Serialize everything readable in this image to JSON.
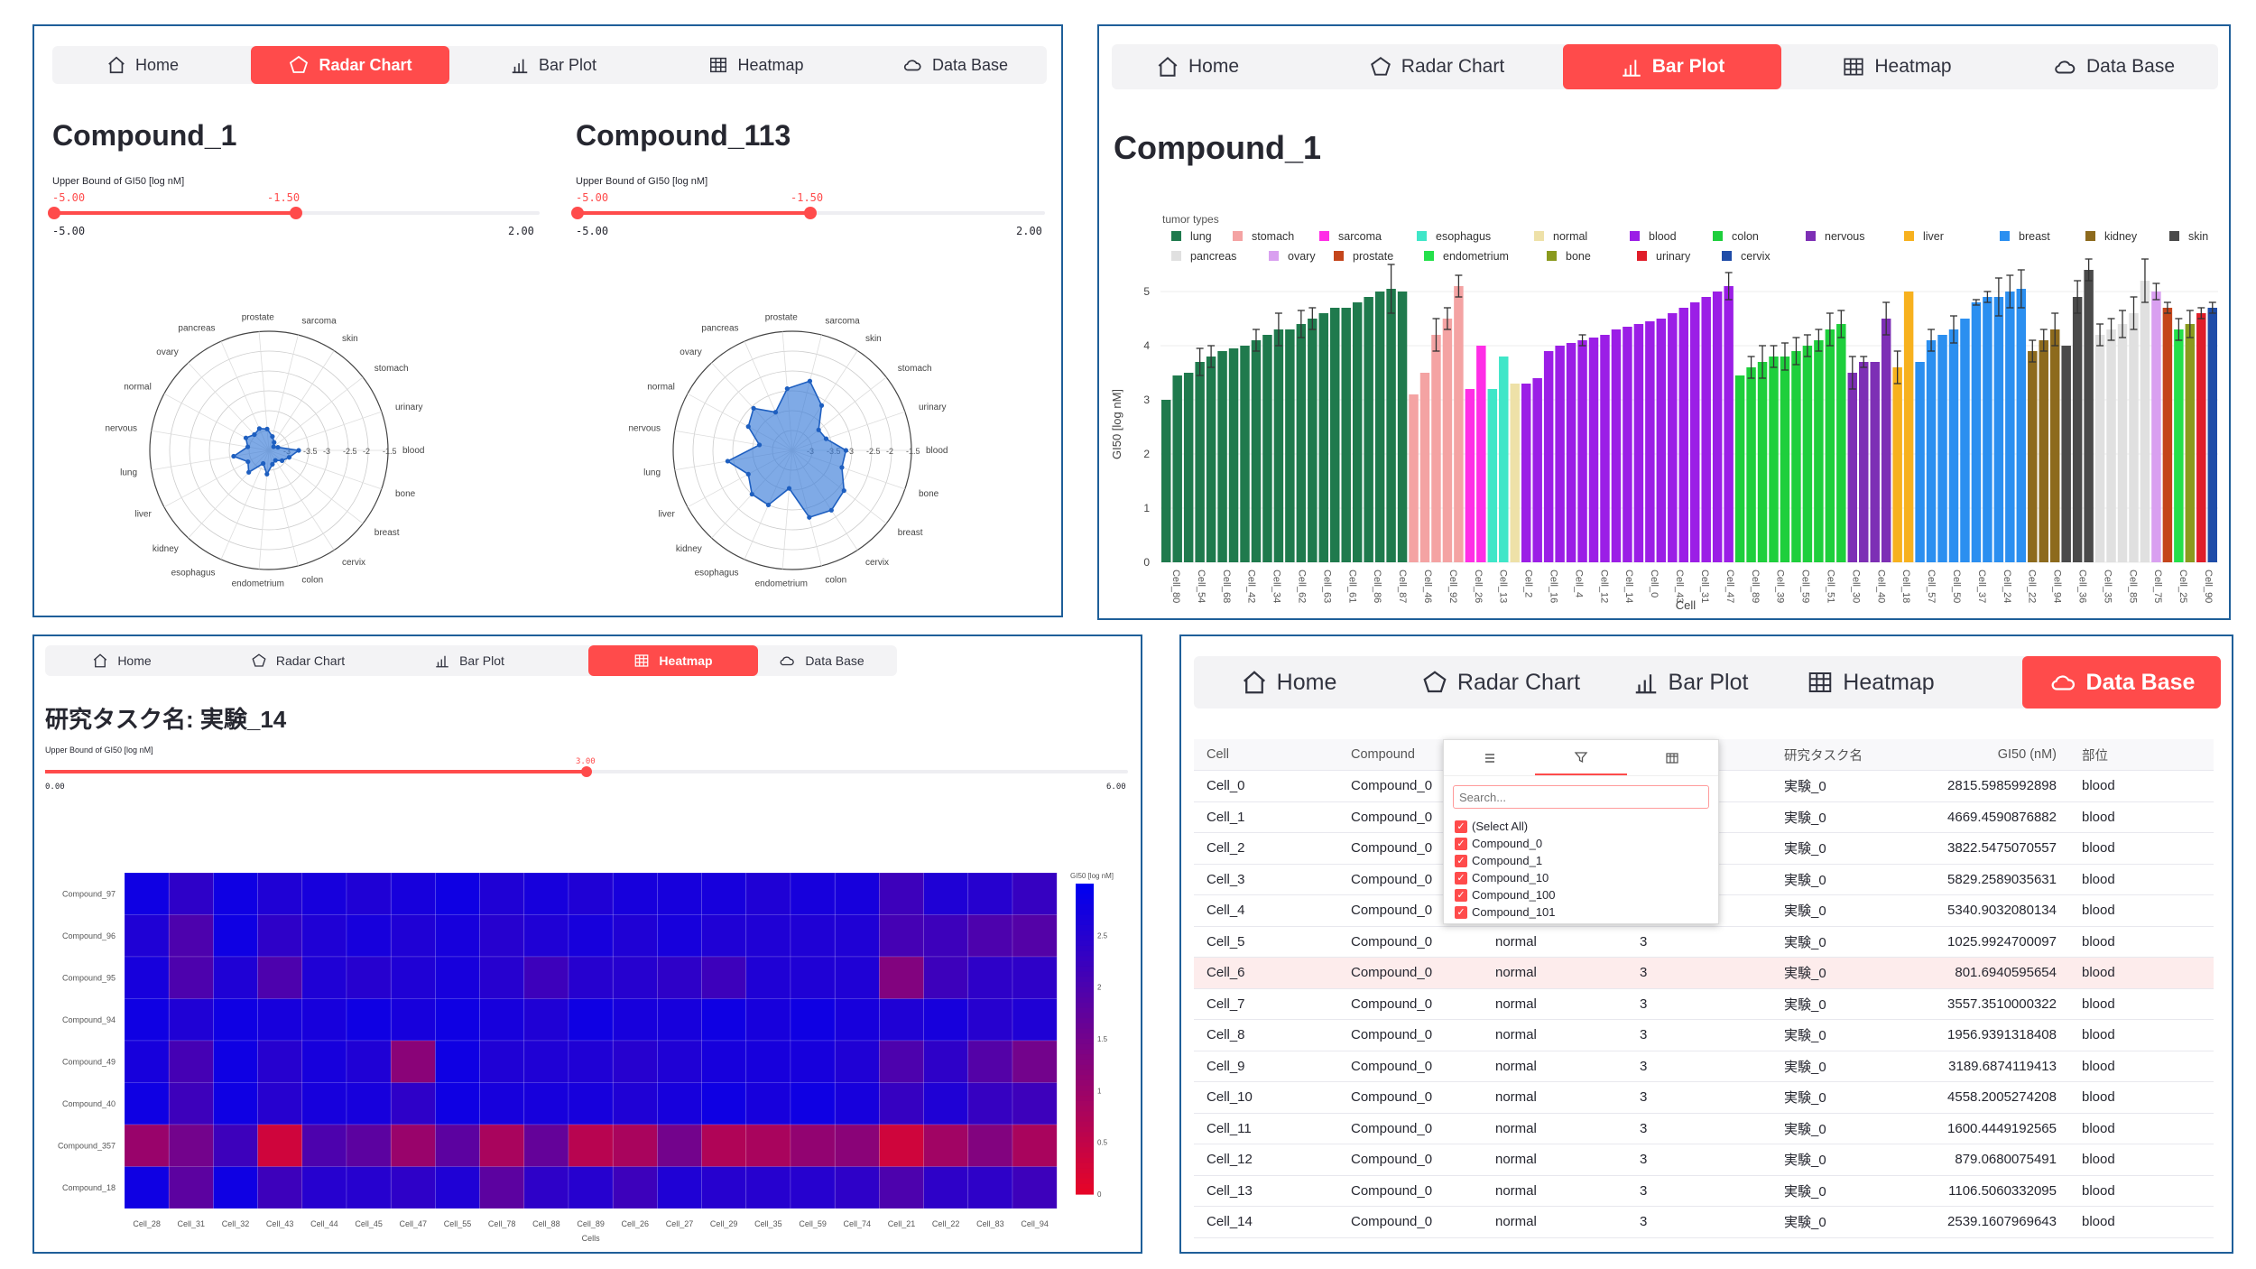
{
  "nav_tabs": [
    "Home",
    "Radar Chart",
    "Bar Plot",
    "Heatmap",
    "Data Base"
  ],
  "colors": {
    "accent": "#ff4b4b",
    "frame": "#1f5f99",
    "radar_fill": "#3b7dd8"
  },
  "radar_panel": {
    "compounds": [
      {
        "title": "Compound_1",
        "slider": {
          "label": "Upper Bound of GI50 [log nM]",
          "range_min": "-5.00",
          "selected_min": "-5.00",
          "selected_max": "-1.50",
          "range_max": "2.00",
          "value_fraction": 0.5
        }
      },
      {
        "title": "Compound_113",
        "slider": {
          "label": "Upper Bound of GI50 [log nM]",
          "range_min": "-5.00",
          "selected_min": "-5.00",
          "selected_max": "-1.50",
          "range_max": "2.00",
          "value_fraction": 0.5
        }
      }
    ],
    "axes": [
      "blood",
      "urinary",
      "stomach",
      "skin",
      "sarcoma",
      "prostate",
      "pancreas",
      "ovary",
      "normal",
      "nervous",
      "lung",
      "liver",
      "kidney",
      "esophagus",
      "endometrium",
      "colon",
      "cervix",
      "breast",
      "bone"
    ],
    "radial_ticks": [
      "-3",
      "-3.5",
      "-3",
      "-2.5",
      "-2",
      "-1.5"
    ],
    "chart_data": [
      {
        "type": "radar",
        "series": [
          {
            "values": [
              0.25,
              0.08,
              0.05,
              0.08,
              0.12,
              0.18,
              0.2,
              0.18,
              0.22,
              0.18,
              0.3,
              0.2,
              0.25,
              0.12,
              0.2,
              0.12,
              0.1,
              0.14,
              0.18
            ]
          }
        ]
      },
      {
        "type": "radar",
        "series": [
          {
            "values": [
              0.45,
              0.3,
              0.28,
              0.45,
              0.6,
              0.52,
              0.35,
              0.48,
              0.42,
              0.28,
              0.55,
              0.42,
              0.5,
              0.5,
              0.32,
              0.58,
              0.6,
              0.55,
              0.44
            ]
          }
        ]
      }
    ]
  },
  "bar_panel": {
    "title": "Compound_1",
    "chart_data": {
      "type": "bar",
      "legend_title": "tumor types",
      "legend": [
        {
          "name": "lung",
          "color": "#1f7a4d"
        },
        {
          "name": "stomach",
          "color": "#f4a3a3"
        },
        {
          "name": "sarcoma",
          "color": "#ff2ee6"
        },
        {
          "name": "esophagus",
          "color": "#3fe6c8"
        },
        {
          "name": "normal",
          "color": "#eee1a8"
        },
        {
          "name": "blood",
          "color": "#9b1ee6"
        },
        {
          "name": "colon",
          "color": "#1ecf3c"
        },
        {
          "name": "nervous",
          "color": "#7d2fb5"
        },
        {
          "name": "liver",
          "color": "#f7b11e"
        },
        {
          "name": "breast",
          "color": "#2b8ff0"
        },
        {
          "name": "kidney",
          "color": "#8d6a1d"
        },
        {
          "name": "skin",
          "color": "#4a4a4a"
        },
        {
          "name": "pancreas",
          "color": "#e0e0e0"
        },
        {
          "name": "ovary",
          "color": "#d9a0f0"
        },
        {
          "name": "prostate",
          "color": "#c4451b"
        },
        {
          "name": "endometrium",
          "color": "#24e04a"
        },
        {
          "name": "bone",
          "color": "#8a9a1e"
        },
        {
          "name": "urinary",
          "color": "#e01e2a"
        },
        {
          "name": "cervix",
          "color": "#1f4ca8"
        }
      ],
      "ylabel": "GI50 [log nM]",
      "xlabel": "Cell",
      "ylim": [
        0,
        5.5
      ],
      "yticks": [
        "0",
        "1",
        "2",
        "3",
        "4",
        "5"
      ],
      "xtick_labels": [
        "Cell_80",
        "Cell_54",
        "Cell_68",
        "Cell_42",
        "Cell_34",
        "Cell_62",
        "Cell_63",
        "Cell_61",
        "Cell_86",
        "Cell_87",
        "Cell_46",
        "Cell_92",
        "Cell_26",
        "Cell_13",
        "Cell_2",
        "Cell_16",
        "Cell_4",
        "Cell_12",
        "Cell_14",
        "Cell_0",
        "Cell_43",
        "Cell_31",
        "Cell_47",
        "Cell_89",
        "Cell_39",
        "Cell_59",
        "Cell_51",
        "Cell_30",
        "Cell_40",
        "Cell_18",
        "Cell_57",
        "Cell_50",
        "Cell_37",
        "Cell_24",
        "Cell_22",
        "Cell_94",
        "Cell_36",
        "Cell_35",
        "Cell_85",
        "Cell_75",
        "Cell_25",
        "Cell_90"
      ],
      "groups": [
        {
          "color": "#1f7a4d",
          "values": [
            3.0,
            3.45,
            3.5,
            3.7,
            3.8,
            3.9,
            3.95,
            4.0,
            4.1,
            4.2,
            4.3,
            4.3,
            4.4,
            4.5,
            4.6,
            4.7,
            4.7,
            4.8,
            4.9,
            5.0,
            5.05,
            5.0
          ],
          "err": [
            0,
            0,
            0,
            0.25,
            0.2,
            0,
            0,
            0,
            0.2,
            0,
            0.3,
            0,
            0.25,
            0.2,
            0,
            0,
            0,
            0,
            0,
            0,
            0.45,
            0
          ]
        },
        {
          "color": "#f4a3a3",
          "values": [
            3.1,
            3.5,
            4.2,
            4.5,
            5.1
          ],
          "err": [
            0,
            0,
            0.3,
            0.2,
            0.2
          ]
        },
        {
          "color": "#ff2ee6",
          "values": [
            3.2,
            4.0
          ],
          "err": [
            0,
            0
          ]
        },
        {
          "color": "#3fe6c8",
          "values": [
            3.2,
            3.8
          ],
          "err": [
            0,
            0
          ]
        },
        {
          "color": "#eee1a8",
          "values": [
            3.3
          ],
          "err": [
            0
          ]
        },
        {
          "color": "#9b1ee6",
          "values": [
            3.3,
            3.4,
            3.9,
            4.0,
            4.05,
            4.1,
            4.15,
            4.2,
            4.3,
            4.35,
            4.4,
            4.45,
            4.5,
            4.6,
            4.7,
            4.8,
            4.9,
            5.0,
            5.1
          ],
          "err": [
            0,
            0,
            0,
            0,
            0,
            0.1,
            0,
            0,
            0,
            0,
            0,
            0,
            0,
            0,
            0,
            0,
            0,
            0,
            0.25
          ]
        },
        {
          "color": "#1ecf3c",
          "values": [
            3.45,
            3.6,
            3.7,
            3.8,
            3.8,
            3.9,
            4.0,
            4.1,
            4.3,
            4.4
          ],
          "err": [
            0,
            0.2,
            0.3,
            0.2,
            0.25,
            0.25,
            0.2,
            0.2,
            0.3,
            0.25
          ]
        },
        {
          "color": "#7d2fb5",
          "values": [
            3.5,
            3.7,
            3.7,
            4.5
          ],
          "err": [
            0.3,
            0.1,
            0,
            0.3
          ]
        },
        {
          "color": "#f7b11e",
          "values": [
            3.6,
            5.0
          ],
          "err": [
            0.3,
            0
          ]
        },
        {
          "color": "#2b8ff0",
          "values": [
            3.7,
            4.1,
            4.2,
            4.3,
            4.5,
            4.8,
            4.9,
            4.9,
            5.0,
            5.05
          ],
          "err": [
            0,
            0.2,
            0,
            0.25,
            0,
            0.05,
            0.1,
            0.35,
            0.3,
            0.35
          ]
        },
        {
          "color": "#8d6a1d",
          "values": [
            3.9,
            4.1,
            4.3
          ],
          "err": [
            0.2,
            0.2,
            0.3
          ]
        },
        {
          "color": "#4a4a4a",
          "values": [
            4.0,
            4.9,
            5.4
          ],
          "err": [
            0,
            0.3,
            0.2
          ]
        },
        {
          "color": "#e0e0e0",
          "values": [
            4.2,
            4.3,
            4.4,
            4.6,
            5.2
          ],
          "err": [
            0.2,
            0.2,
            0.25,
            0.3,
            0.4
          ]
        },
        {
          "color": "#d9a0f0",
          "values": [
            5.0
          ],
          "err": [
            0.15
          ]
        },
        {
          "color": "#c4451b",
          "values": [
            4.7
          ],
          "err": [
            0.1
          ]
        },
        {
          "color": "#24e04a",
          "values": [
            4.3
          ],
          "err": [
            0.2
          ]
        },
        {
          "color": "#8a9a1e",
          "values": [
            4.4
          ],
          "err": [
            0.25
          ]
        },
        {
          "color": "#e01e2a",
          "values": [
            4.6
          ],
          "err": [
            0.1
          ]
        },
        {
          "color": "#1f4ca8",
          "values": [
            4.7
          ],
          "err": [
            0.1
          ]
        }
      ]
    }
  },
  "heatmap_panel": {
    "title": "研究タスク名: 実験_14",
    "slider": {
      "label": "Upper Bound of GI50 [log nM]",
      "min": "0.00",
      "value": "3.00",
      "max": "6.00",
      "value_fraction": 0.5
    },
    "chart_data": {
      "type": "heatmap",
      "rows": [
        "Compound_97",
        "Compound_96",
        "Compound_95",
        "Compound_94",
        "Compound_49",
        "Compound_40",
        "Compound_357",
        "Compound_18"
      ],
      "cols": [
        "Cell_28",
        "Cell_31",
        "Cell_32",
        "Cell_43",
        "Cell_44",
        "Cell_45",
        "Cell_47",
        "Cell_55",
        "Cell_78",
        "Cell_88",
        "Cell_89",
        "Cell_26",
        "Cell_27",
        "Cell_29",
        "Cell_35",
        "Cell_59",
        "Cell_74",
        "Cell_21",
        "Cell_22",
        "Cell_83",
        "Cell_94"
      ],
      "xlabel": "Cells",
      "colorbar_title": "GI50 [log nM]",
      "colorbar_ticks": [
        "2.5",
        "2",
        "1.5",
        "1",
        "0.5",
        "0"
      ],
      "zlim": [
        0,
        3
      ],
      "values": [
        [
          2.8,
          2.4,
          2.8,
          2.6,
          2.7,
          2.6,
          2.7,
          2.8,
          2.6,
          2.7,
          2.6,
          2.7,
          2.7,
          2.7,
          2.6,
          2.7,
          2.7,
          2.2,
          2.6,
          2.5,
          2.3
        ],
        [
          2.6,
          2.0,
          2.8,
          2.4,
          2.6,
          2.7,
          2.6,
          2.7,
          2.5,
          2.6,
          2.7,
          2.6,
          2.7,
          2.6,
          2.6,
          2.6,
          2.6,
          2.1,
          2.2,
          2.0,
          1.9
        ],
        [
          2.7,
          2.0,
          2.6,
          2.0,
          2.6,
          2.5,
          2.6,
          2.7,
          2.5,
          2.2,
          2.5,
          2.5,
          2.4,
          2.2,
          2.6,
          2.6,
          2.6,
          1.3,
          2.2,
          2.4,
          2.4
        ],
        [
          2.8,
          2.6,
          2.8,
          2.7,
          2.7,
          2.8,
          2.7,
          2.8,
          2.7,
          2.6,
          2.8,
          2.7,
          2.7,
          2.8,
          2.7,
          2.8,
          2.7,
          2.6,
          2.7,
          2.5,
          2.6
        ],
        [
          2.7,
          2.1,
          2.8,
          2.5,
          2.7,
          2.6,
          1.2,
          2.8,
          2.6,
          2.6,
          2.6,
          2.5,
          2.6,
          2.7,
          2.7,
          2.7,
          2.6,
          2.0,
          2.4,
          1.9,
          1.5
        ],
        [
          2.8,
          2.2,
          2.8,
          2.5,
          2.7,
          2.7,
          2.4,
          2.8,
          2.7,
          2.7,
          2.7,
          2.6,
          2.7,
          2.8,
          2.7,
          2.8,
          2.7,
          2.3,
          2.6,
          2.3,
          2.2
        ],
        [
          1.0,
          1.5,
          2.2,
          0.3,
          2.0,
          1.8,
          1.0,
          1.8,
          0.8,
          1.7,
          0.6,
          0.8,
          1.5,
          0.7,
          0.8,
          1.1,
          1.2,
          0.3,
          0.9,
          1.3,
          0.8
        ],
        [
          2.8,
          1.8,
          2.8,
          2.2,
          2.5,
          2.5,
          2.4,
          2.6,
          1.8,
          2.4,
          2.5,
          2.2,
          2.6,
          2.5,
          2.5,
          2.5,
          2.4,
          2.0,
          2.4,
          2.4,
          2.2
        ]
      ]
    }
  },
  "database_panel": {
    "columns": [
      "Cell",
      "Compound",
      "",
      "",
      "研究タスク名",
      "GI50 (nM)",
      "部位"
    ],
    "filter_popup": {
      "search_placeholder": "Search...",
      "options": [
        "(Select All)",
        "Compound_0",
        "Compound_1",
        "Compound_10",
        "Compound_100",
        "Compound_101"
      ]
    },
    "rows": [
      [
        "Cell_0",
        "Compound_0",
        "",
        "",
        "実験_0",
        "2815.5985992898",
        "blood"
      ],
      [
        "Cell_1",
        "Compound_0",
        "",
        "",
        "実験_0",
        "4669.4590876882",
        "blood"
      ],
      [
        "Cell_2",
        "Compound_0",
        "",
        "",
        "実験_0",
        "3822.5475070557",
        "blood"
      ],
      [
        "Cell_3",
        "Compound_0",
        "",
        "",
        "実験_0",
        "5829.2589035631",
        "blood"
      ],
      [
        "Cell_4",
        "Compound_0",
        "",
        "",
        "実験_0",
        "5340.9032080134",
        "blood"
      ],
      [
        "Cell_5",
        "Compound_0",
        "normal",
        "3",
        "実験_0",
        "1025.9924700097",
        "blood"
      ],
      [
        "Cell_6",
        "Compound_0",
        "normal",
        "3",
        "実験_0",
        "801.6940595654",
        "blood"
      ],
      [
        "Cell_7",
        "Compound_0",
        "normal",
        "3",
        "実験_0",
        "3557.3510000322",
        "blood"
      ],
      [
        "Cell_8",
        "Compound_0",
        "normal",
        "3",
        "実験_0",
        "1956.9391318408",
        "blood"
      ],
      [
        "Cell_9",
        "Compound_0",
        "normal",
        "3",
        "実験_0",
        "3189.6874119413",
        "blood"
      ],
      [
        "Cell_10",
        "Compound_0",
        "normal",
        "3",
        "実験_0",
        "4558.2005274208",
        "blood"
      ],
      [
        "Cell_11",
        "Compound_0",
        "normal",
        "3",
        "実験_0",
        "1600.4449192565",
        "blood"
      ],
      [
        "Cell_12",
        "Compound_0",
        "normal",
        "3",
        "実験_0",
        "879.0680075491",
        "blood"
      ],
      [
        "Cell_13",
        "Compound_0",
        "normal",
        "3",
        "実験_0",
        "1106.5060332095",
        "blood"
      ],
      [
        "Cell_14",
        "Compound_0",
        "normal",
        "3",
        "実験_0",
        "2539.1607969643",
        "blood"
      ]
    ]
  }
}
